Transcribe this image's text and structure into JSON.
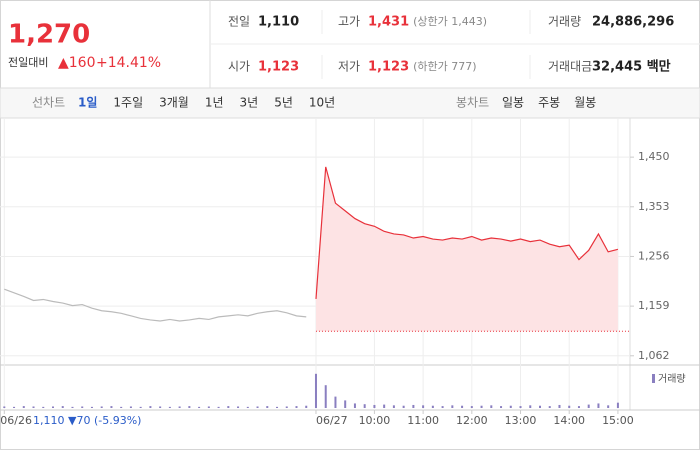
{
  "header": {
    "price": "1,270",
    "change_label": "전일대비",
    "change": "▲160",
    "change_rate": "+14.41%",
    "stats": [
      [
        {
          "label": "전일",
          "value": "1,110"
        },
        {
          "label": "고가",
          "value": "1,431",
          "note": "(상한가 1,443)"
        },
        {
          "label": "거래량",
          "value": "24,886,296"
        }
      ],
      [
        {
          "label": "시가",
          "value": "1,123"
        },
        {
          "label": "저가",
          "value": "1,123",
          "note": "(하한가 777)"
        },
        {
          "label": "거래대금",
          "value": "32,445 백만"
        }
      ]
    ]
  },
  "tabs": {
    "line_label": "선차트",
    "line_tabs": [
      "1일",
      "1주일",
      "3개월",
      "1년",
      "3년",
      "5년",
      "10년"
    ],
    "candle_label": "봉차트",
    "candle_tabs": [
      "일봉",
      "주봉",
      "월봉"
    ]
  },
  "chart_data": {
    "type": "line",
    "categories": [
      "06/26",
      null,
      null,
      null,
      null,
      null,
      null,
      null,
      null,
      null,
      null,
      null,
      null,
      null,
      null,
      null,
      null,
      null,
      null,
      null,
      null,
      null,
      null,
      null,
      null,
      null,
      null,
      null,
      null,
      null,
      null,
      null,
      "06/27",
      null,
      null,
      null,
      null,
      null,
      "10:00",
      null,
      null,
      null,
      null,
      "11:00",
      null,
      null,
      null,
      null,
      "12:00",
      null,
      null,
      null,
      null,
      "13:00",
      null,
      null,
      null,
      null,
      "14:00",
      null,
      null,
      null,
      null,
      "15:00"
    ],
    "series": [
      {
        "color": "#bbbbbb",
        "values": [
          1192,
          1185,
          1178,
          1170,
          1172,
          1168,
          1165,
          1160,
          1162,
          1155,
          1150,
          1148,
          1145,
          1140,
          1135,
          1132,
          1130,
          1133,
          1130,
          1132,
          1135,
          1133,
          1138,
          1140,
          1142,
          1140,
          1145,
          1148,
          1150,
          1146,
          1140,
          1138,
          null,
          null,
          null,
          null,
          null,
          null,
          null,
          null,
          null,
          null,
          null,
          null,
          null,
          null,
          null,
          null,
          null,
          null,
          null,
          null,
          null,
          null,
          null,
          null,
          null,
          null,
          null,
          null,
          null,
          null,
          null,
          null
        ]
      },
      {
        "color": "#e8313a",
        "values": [
          null,
          null,
          null,
          null,
          null,
          null,
          null,
          null,
          null,
          null,
          null,
          null,
          null,
          null,
          null,
          null,
          null,
          null,
          null,
          null,
          null,
          null,
          null,
          null,
          null,
          null,
          null,
          null,
          null,
          null,
          null,
          null,
          1173,
          1431,
          1360,
          1345,
          1330,
          1320,
          1315,
          1305,
          1300,
          1298,
          1292,
          1295,
          1290,
          1288,
          1292,
          1290,
          1295,
          1288,
          1292,
          1290,
          1286,
          1290,
          1285,
          1288,
          1280,
          1275,
          1278,
          1250,
          1268,
          1300,
          1265,
          1270
        ]
      }
    ],
    "baseline": 1110,
    "annotation": "1,110 ▼70 (-5.93%)",
    "ylim": [
      1044,
      1503
    ],
    "yticks": [
      {
        "value": 1450,
        "label": "1,450"
      },
      {
        "value": 1353,
        "label": "1,353"
      },
      {
        "value": 1256,
        "label": "1,256"
      },
      {
        "value": 1159,
        "label": "1,159"
      },
      {
        "value": 1062,
        "label": "1,062"
      }
    ],
    "grid": true,
    "volume": {
      "name": "거래량",
      "color": "#8a7fc0",
      "ylim": [
        0,
        100
      ],
      "values": [
        4,
        3,
        5,
        4,
        3,
        4,
        5,
        3,
        4,
        3,
        4,
        5,
        3,
        4,
        3,
        5,
        4,
        3,
        4,
        5,
        3,
        4,
        3,
        5,
        4,
        3,
        4,
        5,
        3,
        4,
        5,
        6,
        90,
        60,
        30,
        20,
        12,
        10,
        8,
        9,
        7,
        6,
        8,
        7,
        6,
        5,
        7,
        6,
        5,
        6,
        7,
        5,
        6,
        5,
        7,
        6,
        5,
        8,
        6,
        5,
        9,
        12,
        7,
        14
      ]
    }
  }
}
